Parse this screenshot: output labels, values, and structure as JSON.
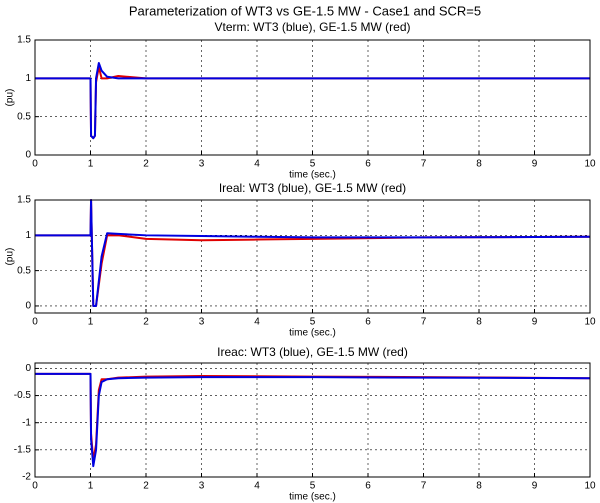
{
  "title": "Parameterization of WT3 vs GE-1.5 MW - Case1 and  SCR=5",
  "chart_data": [
    {
      "type": "line",
      "title": "Vterm: WT3 (blue), GE-1.5 MW (red)",
      "xlabel": "time (sec.)",
      "ylabel": "(pu)",
      "xlim": [
        0,
        10
      ],
      "xticks": [
        0,
        1,
        2,
        3,
        4,
        5,
        6,
        7,
        8,
        9,
        10
      ],
      "ylim": [
        0,
        1.5
      ],
      "yticks": [
        0,
        0.5,
        1,
        1.5
      ],
      "grid": true,
      "x": [
        0,
        1,
        1.01,
        1.05,
        1.08,
        1.1,
        1.15,
        1.2,
        1.3,
        1.5,
        2,
        10
      ],
      "series": [
        {
          "color": "#e00000",
          "values": [
            1,
            1,
            0.25,
            0.22,
            0.25,
            0.95,
            1.15,
            1.0,
            1.0,
            1.03,
            1,
            1
          ]
        },
        {
          "color": "#0000e0",
          "values": [
            1,
            1,
            0.25,
            0.22,
            0.25,
            1.0,
            1.2,
            1.1,
            1.02,
            1.0,
            1,
            1
          ]
        }
      ]
    },
    {
      "type": "line",
      "title": "Ireal: WT3 (blue), GE-1.5 MW (red)",
      "xlabel": "time (sec.)",
      "ylabel": "(pu)",
      "xlim": [
        0,
        10
      ],
      "xticks": [
        0,
        1,
        2,
        3,
        4,
        5,
        6,
        7,
        8,
        9,
        10
      ],
      "ylim": [
        -0.1,
        1.5
      ],
      "yticks": [
        0,
        0.5,
        1,
        1.5
      ],
      "grid": true,
      "x": [
        0,
        1,
        1.01,
        1.05,
        1.1,
        1.2,
        1.3,
        1.5,
        2,
        3,
        4,
        5,
        7,
        10
      ],
      "series": [
        {
          "color": "#e00000",
          "values": [
            1,
            1,
            1.5,
            0,
            0,
            0.6,
            1.0,
            1.0,
            0.95,
            0.93,
            0.94,
            0.95,
            0.97,
            0.98
          ]
        },
        {
          "color": "#0000e0",
          "values": [
            1,
            1,
            1.5,
            0,
            0,
            0.7,
            1.03,
            1.02,
            1.0,
            0.99,
            0.98,
            0.97,
            0.97,
            0.98
          ]
        }
      ]
    },
    {
      "type": "line",
      "title": "Ireac: WT3 (blue), GE-1.5 MW (red)",
      "xlabel": "time (sec.)",
      "xlim": [
        0,
        10
      ],
      "xticks": [
        0,
        1,
        2,
        3,
        4,
        5,
        6,
        7,
        8,
        9,
        10
      ],
      "ylim": [
        -2,
        0.1
      ],
      "yticks": [
        -2,
        -1.5,
        -1,
        -0.5,
        0
      ],
      "grid": true,
      "x": [
        0,
        1,
        1.01,
        1.05,
        1.1,
        1.15,
        1.2,
        1.3,
        1.5,
        2,
        3,
        5,
        7,
        10
      ],
      "series": [
        {
          "color": "#e00000",
          "values": [
            -0.1,
            -0.1,
            -1.2,
            -1.7,
            -1.4,
            -0.4,
            -0.2,
            -0.2,
            -0.17,
            -0.15,
            -0.14,
            -0.15,
            -0.16,
            -0.18
          ]
        },
        {
          "color": "#0000e0",
          "values": [
            -0.1,
            -0.1,
            -1.3,
            -1.8,
            -1.5,
            -0.5,
            -0.25,
            -0.2,
            -0.18,
            -0.17,
            -0.16,
            -0.16,
            -0.17,
            -0.18
          ]
        }
      ]
    }
  ]
}
